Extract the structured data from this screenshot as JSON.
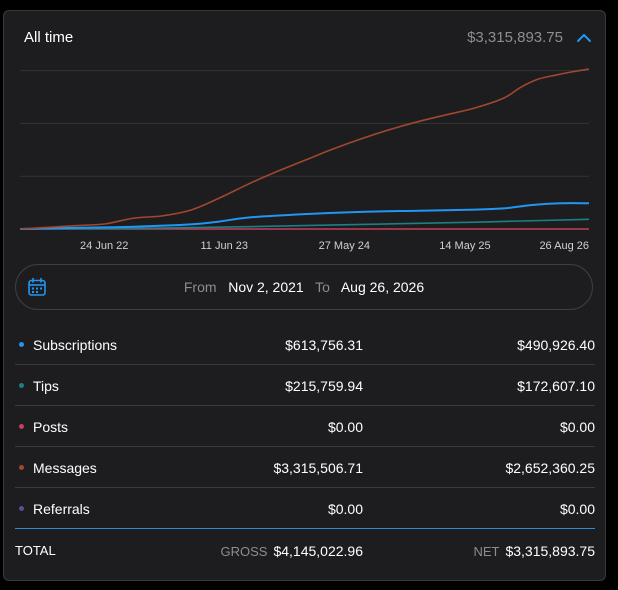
{
  "header": {
    "title": "All time",
    "total": "$3,315,893.75"
  },
  "range": {
    "from_label": "From",
    "from_value": "Nov 2, 2021",
    "to_label": "To",
    "to_value": "Aug 26, 2026"
  },
  "breakdown": [
    {
      "label": "Subscriptions",
      "gross": "$613,756.31",
      "net": "$490,926.40",
      "color": "#2196f3"
    },
    {
      "label": "Tips",
      "gross": "$215,759.94",
      "net": "$172,607.10",
      "color": "#1b7f85"
    },
    {
      "label": "Posts",
      "gross": "$0.00",
      "net": "$0.00",
      "color": "#c2405a"
    },
    {
      "label": "Messages",
      "gross": "$3,315,506.71",
      "net": "$2,652,360.25",
      "color": "#a0472f"
    },
    {
      "label": "Referrals",
      "gross": "$0.00",
      "net": "$0.00",
      "color": "#5a4e9a"
    }
  ],
  "totals": {
    "label": "TOTAL",
    "gross_label": "GROSS",
    "gross_value": "$4,145,022.96",
    "net_label": "NET",
    "net_value": "$3,315,893.75"
  },
  "icons": {
    "collapse": "chevron-up-icon",
    "calendar": "calendar-icon"
  },
  "chart_data": {
    "type": "line",
    "x_ticks": [
      "24 Jun 22",
      "11 Jun 23",
      "27 May 24",
      "14 May 25",
      "26 Aug 26"
    ],
    "x_tick_pos": [
      0.148,
      0.359,
      0.57,
      0.782,
      1.0
    ],
    "x_domain": [
      "Nov 2, 2021",
      "Aug 26, 2026"
    ],
    "ylim": [
      0,
      2800000
    ],
    "grid": true,
    "series": [
      {
        "name": "Messages",
        "color": "#a0472f",
        "x": [
          0,
          0.05,
          0.1,
          0.15,
          0.2,
          0.25,
          0.3,
          0.35,
          0.4,
          0.45,
          0.5,
          0.55,
          0.6,
          0.65,
          0.7,
          0.75,
          0.8,
          0.85,
          0.88,
          0.91,
          0.94,
          0.97,
          1.0
        ],
        "y": [
          0,
          30000,
          60000,
          90000,
          190000,
          230000,
          330000,
          540000,
          780000,
          1000000,
          1200000,
          1400000,
          1580000,
          1740000,
          1880000,
          2000000,
          2120000,
          2290000,
          2480000,
          2620000,
          2690000,
          2750000,
          2800000
        ]
      },
      {
        "name": "Subscriptions",
        "color": "#2196f3",
        "x": [
          0,
          0.1,
          0.2,
          0.3,
          0.35,
          0.4,
          0.5,
          0.6,
          0.7,
          0.8,
          0.85,
          0.9,
          0.95,
          1.0
        ],
        "y": [
          0,
          20000,
          40000,
          80000,
          130000,
          200000,
          260000,
          300000,
          320000,
          340000,
          360000,
          420000,
          450000,
          450000
        ]
      },
      {
        "name": "Tips",
        "color": "#1b7f85",
        "x": [
          0,
          0.2,
          0.4,
          0.6,
          0.8,
          1.0
        ],
        "y": [
          0,
          10000,
          40000,
          80000,
          120000,
          170000
        ]
      },
      {
        "name": "Posts",
        "color": "#c2405a",
        "x": [
          0,
          1.0
        ],
        "y": [
          0,
          0
        ]
      }
    ]
  }
}
